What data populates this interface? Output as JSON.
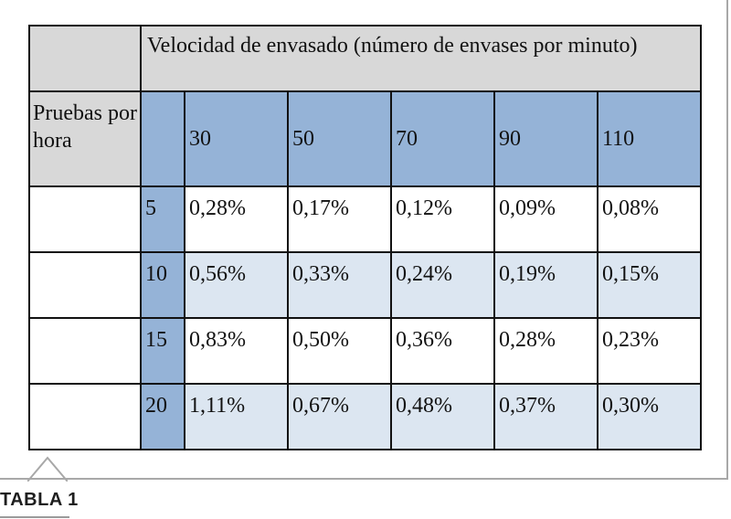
{
  "table": {
    "header": "Velocidad de envasado (número de envases por minuto)",
    "row_label": "Pruebas por hora",
    "speeds": [
      "30",
      "50",
      "70",
      "90",
      "110"
    ],
    "rows": [
      {
        "tests": "5",
        "values": [
          "0,28%",
          "0,17%",
          "0,12%",
          "0,09%",
          "0,08%"
        ]
      },
      {
        "tests": "10",
        "values": [
          "0,56%",
          "0,33%",
          "0,24%",
          "0,19%",
          "0,15%"
        ]
      },
      {
        "tests": "15",
        "values": [
          "0,83%",
          "0,50%",
          "0,36%",
          "0,28%",
          "0,23%"
        ]
      },
      {
        "tests": "20",
        "values": [
          "1,11%",
          "0,67%",
          "0,48%",
          "0,37%",
          "0,30%"
        ]
      }
    ]
  },
  "caption": "TABLA 1",
  "colors": {
    "header_gray": "#d8d8d8",
    "header_blue": "#95b3d7",
    "row_pale_blue": "#dce6f1",
    "row_white": "#ffffff"
  }
}
